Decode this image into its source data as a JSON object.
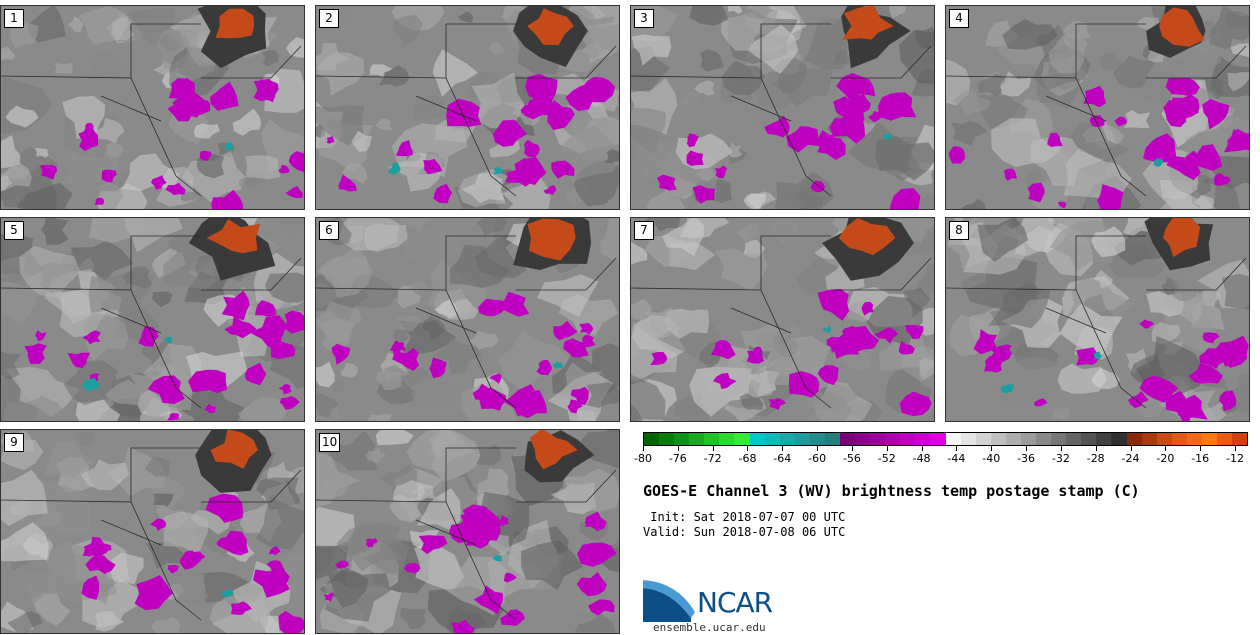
{
  "panels": [
    {
      "label": "1"
    },
    {
      "label": "2"
    },
    {
      "label": "3"
    },
    {
      "label": "4"
    },
    {
      "label": "5"
    },
    {
      "label": "6"
    },
    {
      "label": "7"
    },
    {
      "label": "8"
    },
    {
      "label": "9"
    },
    {
      "label": "10"
    }
  ],
  "colorbar": {
    "colors": [
      "#006400",
      "#0a7a0a",
      "#11901a",
      "#19a81f",
      "#23c027",
      "#2ed82e",
      "#39e83a",
      "#00c8c8",
      "#12b8b8",
      "#1aa9a9",
      "#209b9b",
      "#228c8c",
      "#247e7e",
      "#7a007a",
      "#8a008a",
      "#9a009a",
      "#ac00ac",
      "#bd00bd",
      "#ce00ce",
      "#e000e0",
      "#f7f7f7",
      "#e5e5e5",
      "#d2d2d2",
      "#bfbfbf",
      "#adadad",
      "#9b9b9b",
      "#898989",
      "#777777",
      "#656565",
      "#535353",
      "#414141",
      "#303030",
      "#8a2a0a",
      "#a83a10",
      "#c84a14",
      "#e25a18",
      "#f06a1c",
      "#ff7a10",
      "#e85b10",
      "#d04010"
    ],
    "tick_labels": [
      "-80",
      "-76",
      "-72",
      "-68",
      "-64",
      "-60",
      "-56",
      "-52",
      "-48",
      "-44",
      "-40",
      "-36",
      "-32",
      "-28",
      "-24",
      "-20",
      "-16",
      "-12"
    ]
  },
  "title": "GOES-E Channel 3 (WV) brightness temp postage stamp (C)",
  "init_line": " Init: Sat 2018-07-07 00 UTC",
  "valid_line": "Valid: Sun 2018-07-08 06 UTC",
  "logo": {
    "text": "NCAR",
    "url": "ensemble.ucar.edu",
    "colors": {
      "arc_dark": "#0b4f86",
      "arc_light": "#4a9ad6"
    }
  },
  "map_colors": {
    "dry": "#c44a1a",
    "moist": "#c000c0",
    "cold": "#1aa0a0",
    "bg_gray": "#8a8a8a"
  }
}
